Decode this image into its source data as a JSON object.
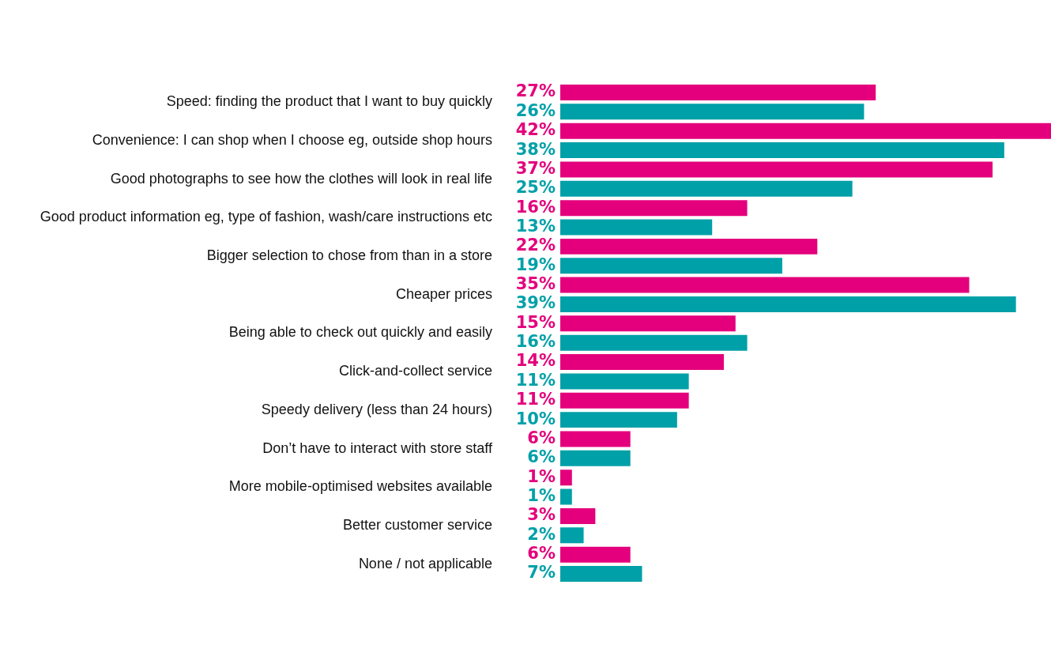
{
  "chart_data": {
    "type": "bar",
    "orientation": "horizontal",
    "tick_labels": "y",
    "xlim": [
      0,
      42
    ],
    "categories": [
      "Speed: finding the product that I want to buy quickly",
      "Convenience: I can shop when I choose eg, outside shop hours",
      "Good photographs to see how the clothes will look in real life",
      "Good product information eg, type of fashion, wash/care instructions etc",
      "Bigger selection to chose from than in a store",
      "Cheaper prices",
      "Being able to check out quickly and easily",
      "Click-and-collect service",
      "Speedy delivery (less than 24 hours)",
      "Don’t have to interact with store staff",
      "More mobile-optimised websites available",
      "Better customer service",
      "None / not applicable"
    ],
    "series": [
      {
        "color": "#e4007c",
        "values": [
          27,
          42,
          37,
          16,
          22,
          35,
          15,
          14,
          11,
          6,
          1,
          3,
          6
        ],
        "value_labels": [
          "27%",
          "42%",
          "37%",
          "16%",
          "22%",
          "35%",
          "15%",
          "14%",
          "11%",
          "6%",
          "1%",
          "3%",
          "6%"
        ]
      },
      {
        "color": "#00a0a8",
        "values": [
          26,
          38,
          25,
          13,
          19,
          39,
          16,
          11,
          10,
          6,
          1,
          2,
          7
        ],
        "value_labels": [
          "26%",
          "38%",
          "25%",
          "13%",
          "19%",
          "39%",
          "16%",
          "11%",
          "10%",
          "6%",
          "1%",
          "2%",
          "7%"
        ]
      }
    ]
  }
}
